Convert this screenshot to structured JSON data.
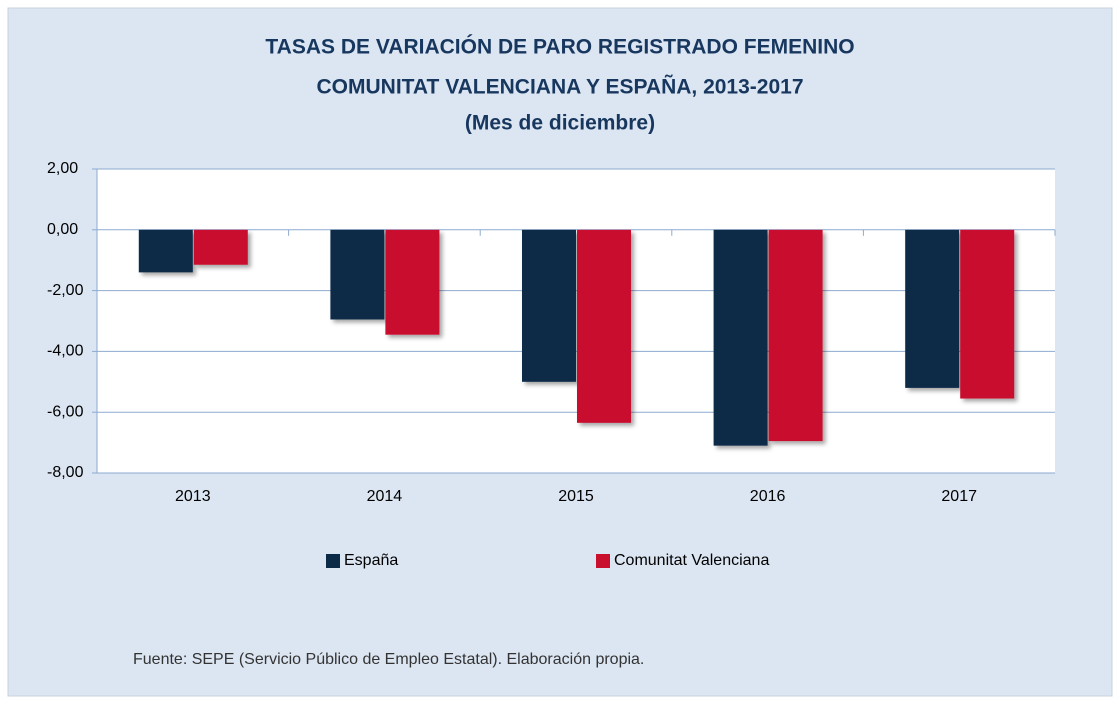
{
  "chart_data": {
    "type": "bar",
    "title_lines": [
      "TASAS DE VARIACIÓN DE PARO REGISTRADO FEMENINO",
      "COMUNITAT VALENCIANA Y ESPAÑA, 2013-2017",
      "(Mes de diciembre)"
    ],
    "categories": [
      "2013",
      "2014",
      "2015",
      "2016",
      "2017"
    ],
    "series": [
      {
        "name": "España",
        "color": "#0b2a47",
        "values": [
          -1.4,
          -2.95,
          -5.0,
          -7.1,
          -5.2
        ]
      },
      {
        "name": "Comunitat Valenciana",
        "color": "#c8102e",
        "values": [
          -1.15,
          -3.45,
          -6.35,
          -6.95,
          -5.55
        ]
      }
    ],
    "ylim": [
      -8,
      2
    ],
    "yticks": [
      {
        "value": -8,
        "label": "-8,00"
      },
      {
        "value": -6,
        "label": "-6,00"
      },
      {
        "value": -4,
        "label": "-4,00"
      },
      {
        "value": -2,
        "label": "-2,00"
      },
      {
        "value": 0,
        "label": "0,00"
      },
      {
        "value": 2,
        "label": "2,00"
      }
    ],
    "grid": true,
    "legend": "bottom",
    "source": "Fuente: SEPE (Servicio Público de Empleo Estatal). Elaboración propia."
  }
}
